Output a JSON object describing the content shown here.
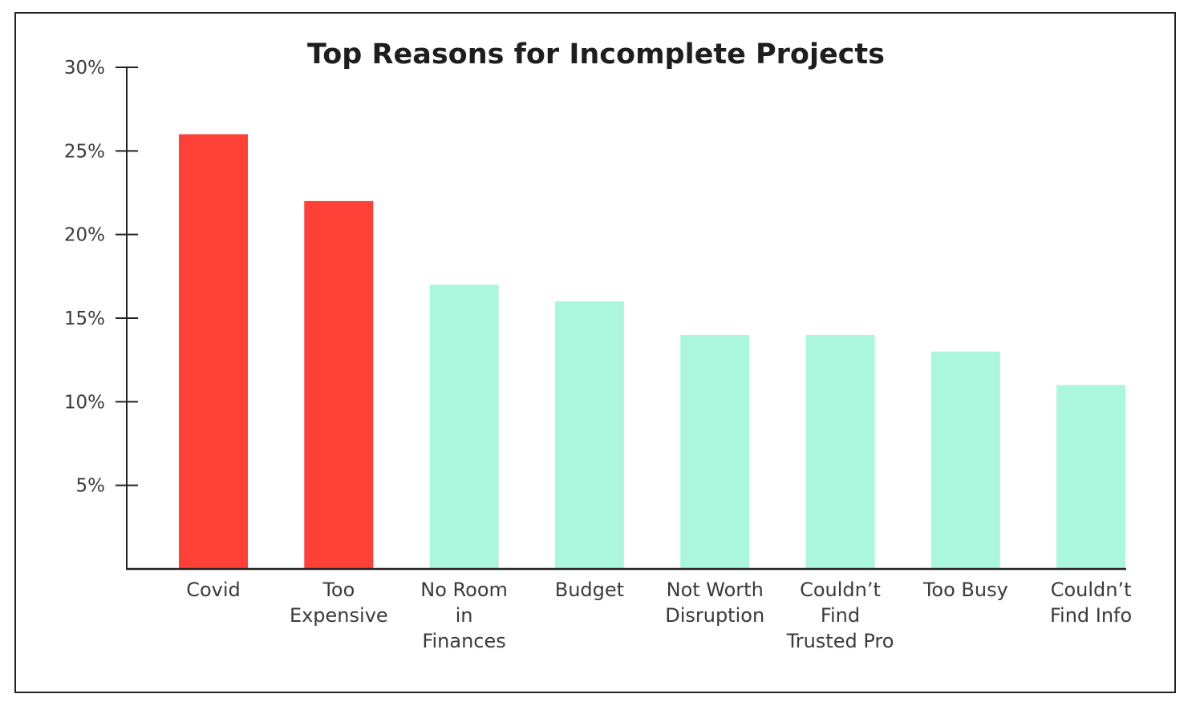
{
  "chart_data": {
    "type": "bar",
    "title": "Top Reasons for Incomplete Projects",
    "xlabel": "",
    "ylabel": "",
    "ylim": [
      0,
      30
    ],
    "yticks": [
      5,
      10,
      15,
      20,
      25,
      30
    ],
    "ytick_labels": [
      "5%",
      "10%",
      "15%",
      "20%",
      "25%",
      "30%"
    ],
    "categories": [
      "Covid",
      "Too Expensive",
      "No Room in Finances",
      "Budget",
      "Not Worth Disruption",
      "Couldn't Find Trusted Pro",
      "Too Busy",
      "Couldn't Find Info"
    ],
    "category_label_lines": [
      [
        "Covid"
      ],
      [
        "Too",
        "Expensive"
      ],
      [
        "No Room",
        "in",
        "Finances"
      ],
      [
        "Budget"
      ],
      [
        "Not Worth",
        "Disruption"
      ],
      [
        "Couldn’t",
        "Find",
        "Trusted Pro"
      ],
      [
        "Too Busy"
      ],
      [
        "Couldn’t",
        "Find Info"
      ]
    ],
    "values": [
      26,
      22,
      17,
      16,
      14,
      14,
      13,
      11
    ],
    "colors": [
      "#ff4036",
      "#ff4036",
      "#aaf7de",
      "#aaf7de",
      "#aaf7de",
      "#aaf7de",
      "#aaf7de",
      "#aaf7de"
    ],
    "grid": false,
    "legend": "none"
  }
}
